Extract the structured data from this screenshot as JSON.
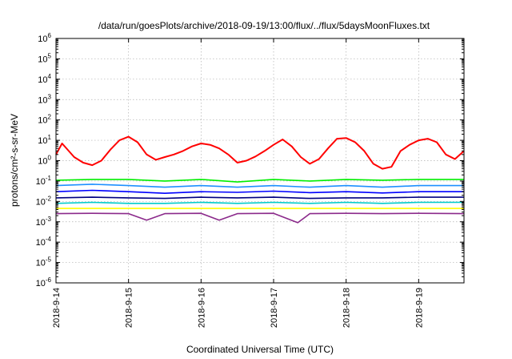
{
  "chart_data": {
    "type": "line",
    "title": "/data/run/goesPlots/archive/2018-09-19/13:00/flux/../flux/5daysMoonFluxes.txt",
    "xlabel": "Coordinated Universal Time (UTC)",
    "ylabel": "protons/cm²-s-sr-MeV",
    "y_scale": "log",
    "ylim": [
      1e-06,
      1000000.0
    ],
    "xlim": [
      "2018-09-14T00:00",
      "2018-09-19T15:00"
    ],
    "grid": true,
    "ytick_exponents": [
      "6",
      "5",
      "4",
      "3",
      "2",
      "1",
      "0",
      "-1",
      "-2",
      "-3",
      "-4",
      "-5",
      "-6"
    ],
    "x_ticks": [
      "2018-9-14",
      "2018-9-15",
      "2018-9-16",
      "2018-9-17",
      "2018-9-18",
      "2018-9-19"
    ],
    "series": [
      {
        "color": "#ff0000",
        "x": [
          "2018-09-14T00:00",
          "2018-09-14T02:00",
          "2018-09-14T06:00",
          "2018-09-14T09:00",
          "2018-09-14T12:00",
          "2018-09-14T15:00",
          "2018-09-14T18:00",
          "2018-09-14T21:00",
          "2018-09-15T00:00",
          "2018-09-15T03:00",
          "2018-09-15T06:00",
          "2018-09-15T09:00",
          "2018-09-15T12:00",
          "2018-09-15T15:00",
          "2018-09-15T18:00",
          "2018-09-15T21:00",
          "2018-09-16T00:00",
          "2018-09-16T03:00",
          "2018-09-16T06:00",
          "2018-09-16T09:00",
          "2018-09-16T12:00",
          "2018-09-16T15:00",
          "2018-09-16T18:00",
          "2018-09-16T21:00",
          "2018-09-17T00:00",
          "2018-09-17T03:00",
          "2018-09-17T06:00",
          "2018-09-17T09:00",
          "2018-09-17T12:00",
          "2018-09-17T15:00",
          "2018-09-17T18:00",
          "2018-09-17T21:00",
          "2018-09-18T00:00",
          "2018-09-18T03:00",
          "2018-09-18T06:00",
          "2018-09-18T09:00",
          "2018-09-18T12:00",
          "2018-09-18T15:00",
          "2018-09-18T18:00",
          "2018-09-18T21:00",
          "2018-09-19T00:00",
          "2018-09-19T03:00",
          "2018-09-19T06:00",
          "2018-09-19T09:00",
          "2018-09-19T12:00",
          "2018-09-19T15:00"
        ],
        "y": [
          2.0,
          7.0,
          1.5,
          0.8,
          0.6,
          1.0,
          3.5,
          10.0,
          15.0,
          8.0,
          2.0,
          1.1,
          1.5,
          2.0,
          3.0,
          5.0,
          7.0,
          6.0,
          4.0,
          2.0,
          0.8,
          1.0,
          1.6,
          3.0,
          6.0,
          11.0,
          5.0,
          1.5,
          0.7,
          1.2,
          4.0,
          12.0,
          13.0,
          8.0,
          3.0,
          0.7,
          0.4,
          0.5,
          3.0,
          6.0,
          10.0,
          12.0,
          8.0,
          2.0,
          1.2,
          3.0
        ]
      },
      {
        "color": "#00ee00",
        "x": [
          "2018-09-14T00:00",
          "2018-09-14T12:00",
          "2018-09-15T00:00",
          "2018-09-15T12:00",
          "2018-09-16T00:00",
          "2018-09-16T12:00",
          "2018-09-17T00:00",
          "2018-09-17T12:00",
          "2018-09-18T00:00",
          "2018-09-18T12:00",
          "2018-09-19T00:00",
          "2018-09-19T15:00"
        ],
        "y": [
          0.11,
          0.12,
          0.12,
          0.1,
          0.12,
          0.09,
          0.12,
          0.1,
          0.12,
          0.11,
          0.12,
          0.12
        ]
      },
      {
        "color": "#1e90ff",
        "x": [
          "2018-09-14T00:00",
          "2018-09-14T12:00",
          "2018-09-15T00:00",
          "2018-09-15T12:00",
          "2018-09-16T00:00",
          "2018-09-16T12:00",
          "2018-09-17T00:00",
          "2018-09-17T12:00",
          "2018-09-18T00:00",
          "2018-09-18T12:00",
          "2018-09-19T00:00",
          "2018-09-19T15:00"
        ],
        "y": [
          0.06,
          0.07,
          0.06,
          0.05,
          0.06,
          0.05,
          0.06,
          0.05,
          0.06,
          0.05,
          0.06,
          0.06
        ]
      },
      {
        "color": "#0000ff",
        "x": [
          "2018-09-14T00:00",
          "2018-09-14T12:00",
          "2018-09-15T00:00",
          "2018-09-15T12:00",
          "2018-09-16T00:00",
          "2018-09-16T12:00",
          "2018-09-17T00:00",
          "2018-09-17T12:00",
          "2018-09-18T00:00",
          "2018-09-18T12:00",
          "2018-09-19T00:00",
          "2018-09-19T15:00"
        ],
        "y": [
          0.03,
          0.035,
          0.03,
          0.025,
          0.03,
          0.028,
          0.032,
          0.027,
          0.03,
          0.026,
          0.03,
          0.03
        ]
      },
      {
        "color": "#000080",
        "x": [
          "2018-09-14T00:00",
          "2018-09-14T12:00",
          "2018-09-15T00:00",
          "2018-09-15T12:00",
          "2018-09-16T00:00",
          "2018-09-16T12:00",
          "2018-09-17T00:00",
          "2018-09-17T12:00",
          "2018-09-18T00:00",
          "2018-09-18T12:00",
          "2018-09-19T00:00",
          "2018-09-19T15:00"
        ],
        "y": [
          0.015,
          0.016,
          0.015,
          0.014,
          0.016,
          0.015,
          0.016,
          0.014,
          0.015,
          0.015,
          0.016,
          0.016
        ]
      },
      {
        "color": "#00cccc",
        "x": [
          "2018-09-14T00:00",
          "2018-09-14T12:00",
          "2018-09-15T00:00",
          "2018-09-15T12:00",
          "2018-09-16T00:00",
          "2018-09-16T12:00",
          "2018-09-17T00:00",
          "2018-09-17T12:00",
          "2018-09-18T00:00",
          "2018-09-18T12:00",
          "2018-09-19T00:00",
          "2018-09-19T15:00"
        ],
        "y": [
          0.008,
          0.009,
          0.008,
          0.008,
          0.009,
          0.008,
          0.009,
          0.008,
          0.009,
          0.008,
          0.009,
          0.009
        ]
      },
      {
        "color": "#ffff00",
        "x": [
          "2018-09-14T00:00",
          "2018-09-14T12:00",
          "2018-09-15T00:00",
          "2018-09-15T12:00",
          "2018-09-16T00:00",
          "2018-09-16T12:00",
          "2018-09-17T00:00",
          "2018-09-17T12:00",
          "2018-09-18T00:00",
          "2018-09-18T12:00",
          "2018-09-19T00:00",
          "2018-09-19T15:00"
        ],
        "y": [
          0.0045,
          0.0045,
          0.0045,
          0.0045,
          0.0045,
          0.0045,
          0.0045,
          0.0045,
          0.0045,
          0.0045,
          0.0045,
          0.0045
        ]
      },
      {
        "color": "#8b2a8b",
        "x": [
          "2018-09-14T00:00",
          "2018-09-14T12:00",
          "2018-09-15T00:00",
          "2018-09-15T06:00",
          "2018-09-15T12:00",
          "2018-09-16T00:00",
          "2018-09-16T06:00",
          "2018-09-16T12:00",
          "2018-09-17T00:00",
          "2018-09-17T08:00",
          "2018-09-17T12:00",
          "2018-09-18T00:00",
          "2018-09-18T12:00",
          "2018-09-19T00:00",
          "2018-09-19T15:00"
        ],
        "y": [
          0.0025,
          0.0026,
          0.0025,
          0.0012,
          0.0025,
          0.0026,
          0.0012,
          0.0025,
          0.0026,
          0.0009,
          0.0025,
          0.0026,
          0.0025,
          0.0026,
          0.0025
        ]
      }
    ]
  }
}
